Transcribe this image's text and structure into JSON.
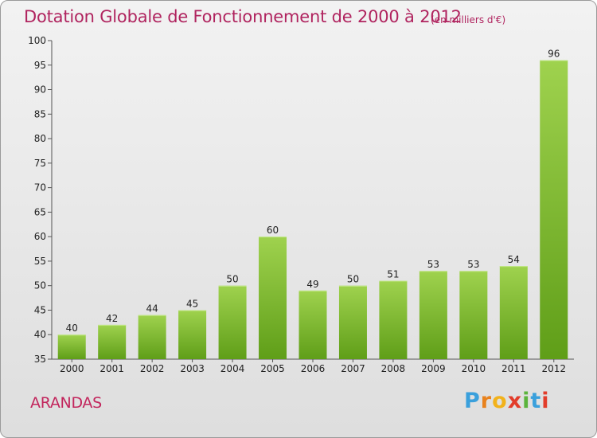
{
  "title": "Dotation Globale de Fonctionnement de 2000 à 2012",
  "subtitle": "(en milliers d'€)",
  "commune": "ARANDAS",
  "logo": {
    "letters": [
      "P",
      "r",
      "o",
      "x",
      "i",
      "t",
      "i"
    ],
    "colors": [
      "#3aa0dc",
      "#e8821e",
      "#f2b21b",
      "#e23c2a",
      "#5bb43c",
      "#3aa0dc",
      "#e23c2a"
    ]
  },
  "colors": {
    "title": "#b0245f",
    "bar_top": "#9fd24e",
    "bar_bottom": "#5f9e18"
  },
  "chart_data": {
    "type": "bar",
    "categories": [
      "2000",
      "2001",
      "2002",
      "2003",
      "2004",
      "2005",
      "2006",
      "2007",
      "2008",
      "2009",
      "2010",
      "2011",
      "2012"
    ],
    "values": [
      40,
      42,
      44,
      45,
      50,
      60,
      49,
      50,
      51,
      53,
      53,
      54,
      96
    ],
    "ylim": [
      35,
      100
    ],
    "yticks": [
      35,
      40,
      45,
      50,
      55,
      60,
      65,
      70,
      75,
      80,
      85,
      90,
      95,
      100
    ],
    "grid": false,
    "legend": "none"
  }
}
